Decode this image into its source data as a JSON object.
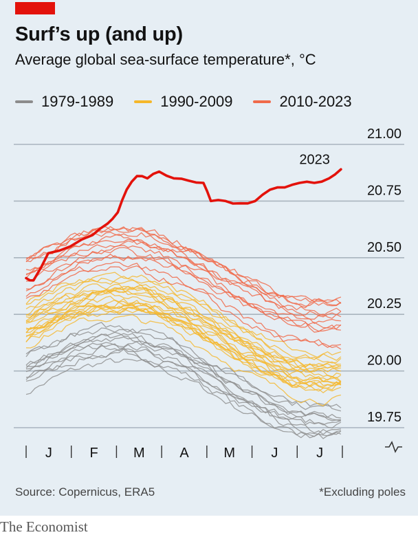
{
  "header": {
    "title": "Surf’s up (and up)",
    "subtitle": "Average global sea-surface temperature*, °C"
  },
  "legend": [
    {
      "label": "1979-1989",
      "color": "#8c8c8c"
    },
    {
      "label": "1990-2009",
      "color": "#f5b72a"
    },
    {
      "label": "2010-2023",
      "color": "#f06a4a"
    }
  ],
  "footer": {
    "source": "Source: Copernicus, ERA5",
    "footnote": "*Excluding poles",
    "brand": "The Economist"
  },
  "colors": {
    "highlight": "#e3120b",
    "grid": "#a9b4be",
    "panel": "#e6eef4"
  },
  "chart_data": {
    "type": "line",
    "title": "Surf’s up (and up)",
    "ylabel": "Average global sea-surface temperature*, °C",
    "ylim": [
      19.75,
      21.0
    ],
    "yticks": [
      "19.75",
      "20.00",
      "20.25",
      "20.50",
      "20.75",
      "21.00"
    ],
    "x_months": [
      "J",
      "F",
      "M",
      "A",
      "M",
      "J",
      "J"
    ],
    "x_axis_break_icon": "axis-break-icon",
    "x_range_days": [
      0,
      214
    ],
    "groups": [
      {
        "name": "1979-1989",
        "years": 11,
        "baseline": 19.98,
        "spread": 0.14
      },
      {
        "name": "1990-2009",
        "years": 20,
        "baseline": 20.18,
        "spread": 0.16
      },
      {
        "name": "2010-2023",
        "years": 13,
        "baseline": 20.4,
        "spread": 0.2
      }
    ],
    "highlight": {
      "name": "2023",
      "label": "2023",
      "points": [
        [
          0,
          20.41
        ],
        [
          5,
          20.4
        ],
        [
          15,
          20.52
        ],
        [
          30,
          20.55
        ],
        [
          45,
          20.6
        ],
        [
          55,
          20.65
        ],
        [
          62,
          20.7
        ],
        [
          68,
          20.8
        ],
        [
          75,
          20.86
        ],
        [
          82,
          20.85
        ],
        [
          90,
          20.88
        ],
        [
          100,
          20.85
        ],
        [
          110,
          20.84
        ],
        [
          120,
          20.83
        ],
        [
          125,
          20.75
        ],
        [
          135,
          20.75
        ],
        [
          145,
          20.74
        ],
        [
          155,
          20.75
        ],
        [
          165,
          20.8
        ],
        [
          175,
          20.81
        ],
        [
          185,
          20.83
        ],
        [
          195,
          20.83
        ],
        [
          205,
          20.85
        ],
        [
          213,
          20.89
        ]
      ]
    }
  }
}
